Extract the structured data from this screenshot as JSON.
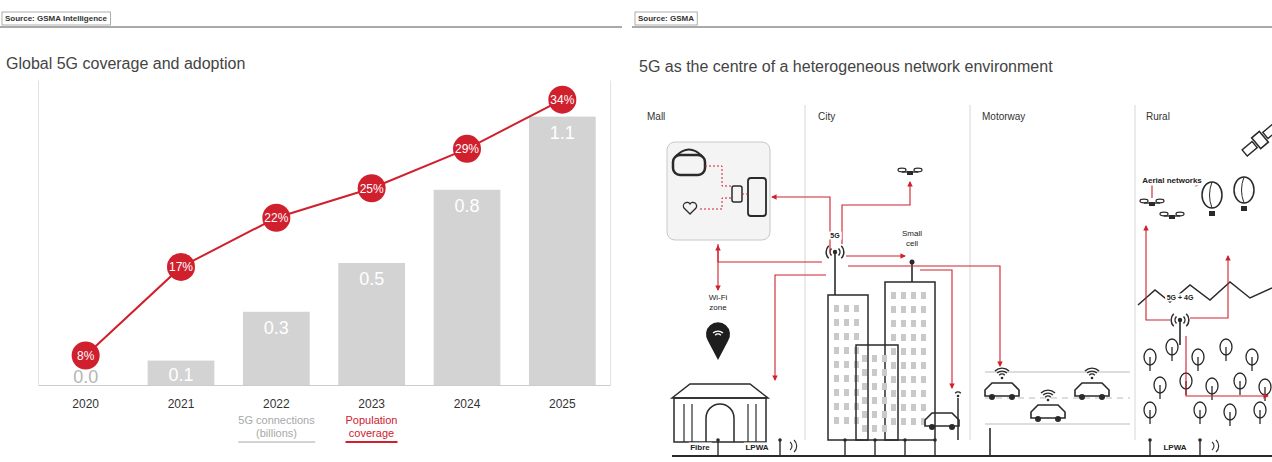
{
  "chart_data": {
    "type": "bar",
    "source": "Source: GSMA Intelligence",
    "title": "Global 5G coverage and adoption",
    "categories": [
      "2020",
      "2021",
      "2022",
      "2023",
      "2024",
      "2025"
    ],
    "series": [
      {
        "name": "5G connections (billions)",
        "type": "bar",
        "color": "#d3d3d3",
        "values": [
          0,
          0.1,
          0.3,
          0.5,
          0.8,
          1.1
        ],
        "value_labels": [
          "0.0",
          "0.1",
          "0.3",
          "0.5",
          "0.8",
          "1.1"
        ]
      },
      {
        "name": "Population coverage",
        "type": "line",
        "axis": "y2",
        "color": "#d0202e",
        "marker": "circle",
        "values": [
          8,
          17,
          22,
          25,
          29,
          34
        ],
        "value_labels": [
          "8%",
          "17%",
          "22%",
          "25%",
          "29%",
          "34%"
        ]
      }
    ],
    "ylim": [
      0,
      1.25
    ],
    "yticks": [],
    "y2lim": [
      5,
      36
    ],
    "y2ticks": [],
    "data_labels": true,
    "tick_labels": "x",
    "legend": "bottom",
    "grid": false
  },
  "diagram": {
    "source": "Source: GSMA",
    "title": "5G as the centre of a heterogeneous network environment",
    "zones": [
      "Mall",
      "City",
      "Motorway",
      "Rural"
    ],
    "nodes": [
      "Wi-Fi zone",
      "5G",
      "Small cell",
      "Aerial networks",
      "5G + 4G",
      "Fibre",
      "LPWA",
      "LPWA"
    ]
  }
}
